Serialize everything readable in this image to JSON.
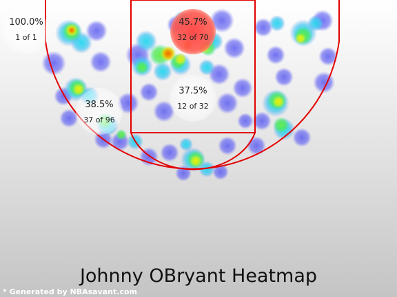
{
  "chart_data": {
    "type": "heatmap",
    "title": "Johnny OBryant Heatmap",
    "credit": "* Generated by NBAsavant.com",
    "zones": [
      {
        "id": "left-corner",
        "pct": "100.0%",
        "ratio": "1 of 1",
        "made": 1,
        "attempts": 1
      },
      {
        "id": "restricted-area",
        "pct": "45.7%",
        "ratio": "32 of 70",
        "made": 32,
        "attempts": 70
      },
      {
        "id": "left-midrange",
        "pct": "38.5%",
        "ratio": "37 of 96",
        "made": 37,
        "attempts": 96
      },
      {
        "id": "paint",
        "pct": "37.5%",
        "ratio": "12 of 32",
        "made": 12,
        "attempts": 32
      }
    ],
    "court_color": "#e8e8e8",
    "line_color": "#e30000",
    "heat_colors": [
      "#6060f0",
      "#20c8f0",
      "#40f040",
      "#f0f000",
      "#f08000",
      "#f03000"
    ]
  }
}
